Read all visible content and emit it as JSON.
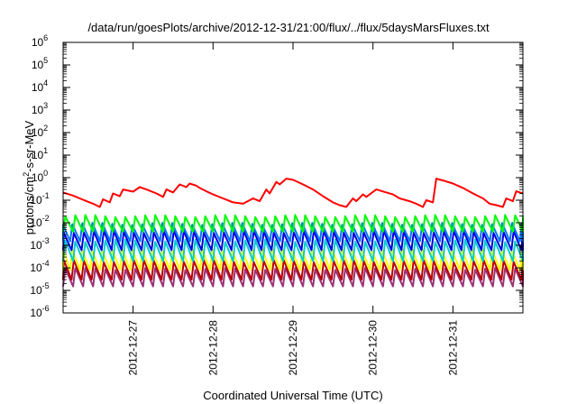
{
  "chart_data": {
    "type": "line",
    "title": "/data/run/goesPlots/archive/2012-12-31/21:00/flux/../flux/5daysMarsFluxes.txt",
    "xlabel": "Coordinated Universal Time (UTC)",
    "ylabel": {
      "base": "protons/cm",
      "sup": "2",
      "rest": "-s-sr-MeV"
    },
    "x_scale": "time",
    "x_range": [
      "2012-12-26T03:00",
      "2012-12-31T21:00"
    ],
    "x_ticks": [
      "2012-12-27",
      "2012-12-28",
      "2012-12-29",
      "2012-12-30",
      "2012-12-31"
    ],
    "y_scale": "log",
    "y_range": [
      1e-06,
      1000000.0
    ],
    "y_ticks": [
      {
        "base": "10",
        "exp": "-6"
      },
      {
        "base": "10",
        "exp": "-5"
      },
      {
        "base": "10",
        "exp": "-4"
      },
      {
        "base": "10",
        "exp": "-3"
      },
      {
        "base": "10",
        "exp": "-2"
      },
      {
        "base": "10",
        "exp": "-1"
      },
      {
        "base": "10",
        "exp": "0"
      },
      {
        "base": "10",
        "exp": "1"
      },
      {
        "base": "10",
        "exp": "2"
      },
      {
        "base": "10",
        "exp": "3"
      },
      {
        "base": "10",
        "exp": "4"
      },
      {
        "base": "10",
        "exp": "5"
      },
      {
        "base": "10",
        "exp": "6"
      }
    ],
    "grid": false,
    "legend": "none",
    "series": [
      {
        "color": "#ff0000",
        "x": [
          "2012-12-26T03:00",
          "2012-12-26T06:00",
          "2012-12-26T08:00",
          "2012-12-26T10:00",
          "2012-12-26T12:00",
          "2012-12-26T14:00",
          "2012-12-26T15:00",
          "2012-12-26T17:00",
          "2012-12-26T18:00",
          "2012-12-26T20:00",
          "2012-12-26T21:00",
          "2012-12-27T00:00",
          "2012-12-27T02:00",
          "2012-12-27T04:00",
          "2012-12-27T07:00",
          "2012-12-27T09:00",
          "2012-12-27T10:00",
          "2012-12-27T12:00",
          "2012-12-27T14:00",
          "2012-12-27T16:00",
          "2012-12-27T17:00",
          "2012-12-27T19:00",
          "2012-12-27T20:00",
          "2012-12-27T22:00",
          "2012-12-28T00:00",
          "2012-12-28T03:00",
          "2012-12-28T06:00",
          "2012-12-28T09:00",
          "2012-12-28T12:00",
          "2012-12-28T14:00",
          "2012-12-28T16:00",
          "2012-12-28T17:00",
          "2012-12-28T19:00",
          "2012-12-28T20:00",
          "2012-12-28T22:00",
          "2012-12-29T00:00",
          "2012-12-29T03:00",
          "2012-12-29T06:00",
          "2012-12-29T09:00",
          "2012-12-29T12:00",
          "2012-12-29T14:00",
          "2012-12-29T16:00",
          "2012-12-29T18:00",
          "2012-12-29T19:00",
          "2012-12-29T21:00",
          "2012-12-29T22:00",
          "2012-12-30T01:00",
          "2012-12-30T04:00",
          "2012-12-30T06:00",
          "2012-12-30T08:00",
          "2012-12-30T11:00",
          "2012-12-30T13:00",
          "2012-12-30T15:00",
          "2012-12-30T16:00",
          "2012-12-30T18:00",
          "2012-12-30T19:00",
          "2012-12-30T21:00",
          "2012-12-31T00:00",
          "2012-12-31T03:00",
          "2012-12-31T06:00",
          "2012-12-31T09:00",
          "2012-12-31T11:00",
          "2012-12-31T13:00",
          "2012-12-31T15:00",
          "2012-12-31T16:00",
          "2012-12-31T18:00",
          "2012-12-31T19:00",
          "2012-12-31T21:00"
        ],
        "values": [
          0.22,
          0.16,
          0.12,
          0.09,
          0.07,
          0.05,
          0.11,
          0.08,
          0.2,
          0.15,
          0.3,
          0.24,
          0.38,
          0.3,
          0.2,
          0.14,
          0.3,
          0.22,
          0.5,
          0.38,
          0.55,
          0.44,
          0.35,
          0.25,
          0.18,
          0.12,
          0.08,
          0.07,
          0.12,
          0.09,
          0.3,
          0.2,
          0.65,
          0.5,
          0.9,
          0.8,
          0.5,
          0.3,
          0.15,
          0.08,
          0.06,
          0.05,
          0.12,
          0.09,
          0.18,
          0.14,
          0.3,
          0.22,
          0.18,
          0.12,
          0.09,
          0.07,
          0.05,
          0.1,
          0.08,
          0.9,
          0.75,
          0.55,
          0.35,
          0.2,
          0.12,
          0.07,
          0.06,
          0.05,
          0.12,
          0.09,
          0.25,
          0.2
        ]
      },
      {
        "color": "#00ff00",
        "min": 0.004,
        "max": 0.02
      },
      {
        "color": "#0077ff",
        "min": 0.0015,
        "max": 0.009
      },
      {
        "color": "#0000dd",
        "min": 0.0006,
        "max": 0.004
      },
      {
        "color": "#00cccc",
        "min": 0.0002,
        "max": 0.0016
      },
      {
        "color": "#ffff00",
        "min": 8e-05,
        "max": 0.0006
      },
      {
        "color": "#bb0000",
        "min": 3e-05,
        "max": 0.0002
      },
      {
        "color": "#993377",
        "min": 1.5e-05,
        "max": 9e-05
      }
    ],
    "oscillation_period_hours": 3
  }
}
